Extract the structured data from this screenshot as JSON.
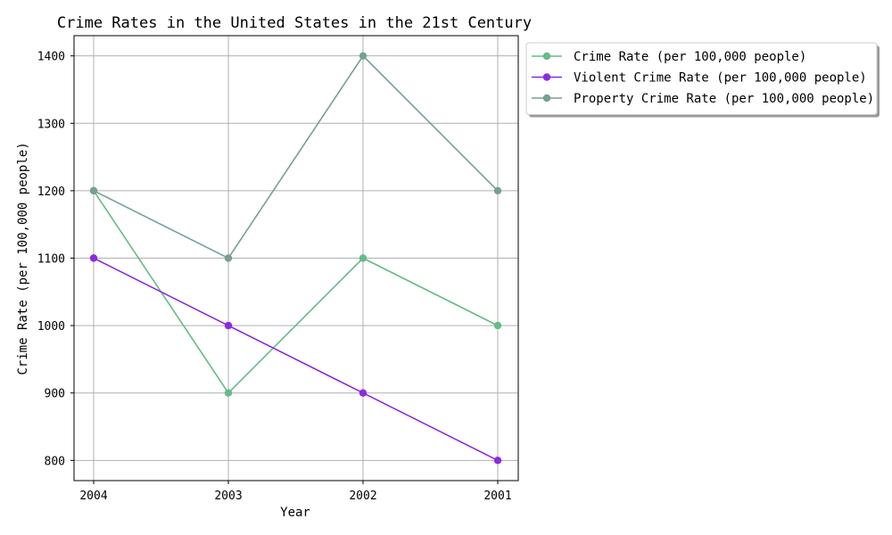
{
  "chart_data": {
    "type": "line",
    "title": "Crime Rates in the United States in the 21st Century",
    "xlabel": "Year",
    "ylabel": "Crime Rate (per 100,000 people)",
    "categories": [
      "2004",
      "2003",
      "2002",
      "2001"
    ],
    "ylim": [
      770,
      1430
    ],
    "yticks": [
      800,
      900,
      1000,
      1100,
      1200,
      1300,
      1400
    ],
    "grid": true,
    "legend_placement": "outside-right-top",
    "series": [
      {
        "name": "Crime Rate (per 100,000 people)",
        "color": "#66bb88",
        "values": [
          1200,
          900,
          1100,
          1000
        ]
      },
      {
        "name": "Violent Crime Rate (per 100,000 people)",
        "color": "#8a2be2",
        "values": [
          1100,
          1000,
          900,
          800
        ]
      },
      {
        "name": "Property Crime Rate (per 100,000 people)",
        "color": "#76a095",
        "values": [
          1200,
          1100,
          1400,
          1200
        ]
      }
    ]
  }
}
